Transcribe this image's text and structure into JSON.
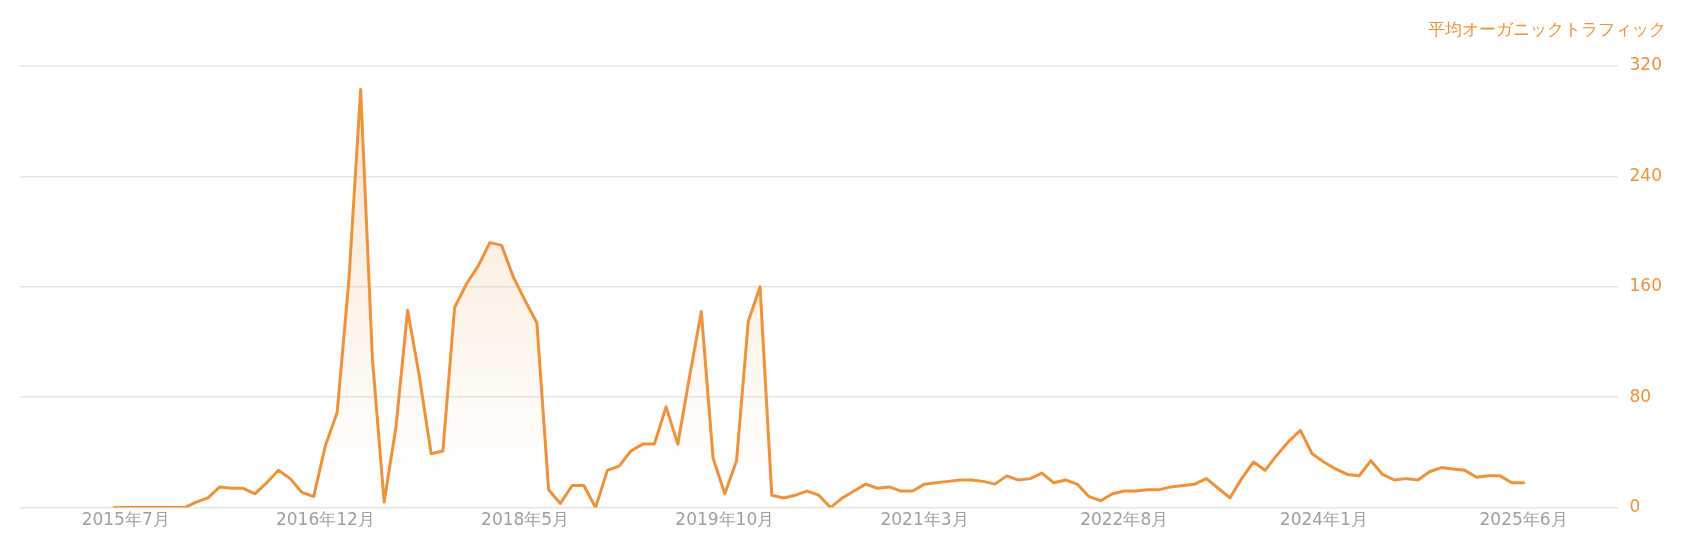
{
  "chart_data": {
    "type": "area",
    "ylabel": "平均オーガニックトラフィック",
    "x": [
      "2015-06",
      "2015-07",
      "2015-08",
      "2015-09",
      "2015-10",
      "2015-11",
      "2015-12",
      "2016-01",
      "2016-02",
      "2016-03",
      "2016-04",
      "2016-05",
      "2016-06",
      "2016-07",
      "2016-08",
      "2016-09",
      "2016-10",
      "2016-11",
      "2016-12",
      "2017-01",
      "2017-02",
      "2017-03",
      "2017-04",
      "2017-05",
      "2017-06",
      "2017-07",
      "2017-08",
      "2017-09",
      "2017-10",
      "2017-11",
      "2017-12",
      "2018-01",
      "2018-02",
      "2018-03",
      "2018-04",
      "2018-05",
      "2018-06",
      "2018-07",
      "2018-08",
      "2018-09",
      "2018-10",
      "2018-11",
      "2018-12",
      "2019-01",
      "2019-02",
      "2019-03",
      "2019-04",
      "2019-05",
      "2019-06",
      "2019-07",
      "2019-08",
      "2019-09",
      "2019-10",
      "2019-11",
      "2019-12",
      "2020-01",
      "2020-02",
      "2020-03",
      "2020-04",
      "2020-05",
      "2020-06",
      "2020-07",
      "2020-08",
      "2020-09",
      "2020-10",
      "2020-11",
      "2020-12",
      "2021-01",
      "2021-02",
      "2021-03",
      "2021-04",
      "2021-05",
      "2021-06",
      "2021-07",
      "2021-08",
      "2021-09",
      "2021-10",
      "2021-11",
      "2021-12",
      "2022-01",
      "2022-02",
      "2022-03",
      "2022-04",
      "2022-05",
      "2022-06",
      "2022-07",
      "2022-08",
      "2022-09",
      "2022-10",
      "2022-11",
      "2022-12",
      "2023-01",
      "2023-02",
      "2023-03",
      "2023-04",
      "2023-05",
      "2023-06",
      "2023-07",
      "2023-08",
      "2023-09",
      "2023-10",
      "2023-11",
      "2023-12",
      "2024-01",
      "2024-02",
      "2024-03",
      "2024-04",
      "2024-05",
      "2024-06",
      "2024-07",
      "2024-08",
      "2024-09",
      "2024-10",
      "2024-11",
      "2024-12",
      "2025-01",
      "2025-02",
      "2025-03",
      "2025-04",
      "2025-05",
      "2025-06"
    ],
    "series": [
      {
        "color": "#f0923a",
        "values": [
          0,
          0,
          0,
          0,
          0,
          0,
          0,
          4,
          7,
          15,
          14,
          14,
          10,
          18,
          27,
          21,
          11,
          8,
          45,
          69,
          165,
          303,
          108,
          4,
          58,
          143,
          95,
          39,
          41,
          145,
          162,
          175,
          192,
          190,
          167,
          150,
          134,
          13,
          3,
          16,
          16,
          0,
          27,
          30,
          41,
          46,
          46,
          73,
          46,
          95,
          142,
          36,
          10,
          34,
          135,
          160,
          9,
          7,
          9,
          12,
          9,
          0,
          7,
          12,
          17,
          14,
          15,
          12,
          12,
          17,
          18,
          19,
          20,
          20,
          19,
          17,
          23,
          20,
          21,
          25,
          18,
          20,
          17,
          8,
          5,
          10,
          12,
          12,
          13,
          13,
          15,
          16,
          17,
          21,
          14,
          7,
          21,
          33,
          27,
          38,
          48,
          56,
          39,
          33,
          28,
          24,
          23,
          34,
          24,
          20,
          21,
          20,
          26,
          29,
          28,
          27,
          22,
          23,
          23,
          18,
          18
        ]
      }
    ],
    "xlim": [
      "2014-10",
      "2026-02"
    ],
    "xticks": [
      {
        "value": "2015-07",
        "label": "2015年7月"
      },
      {
        "value": "2016-12",
        "label": "2016年12月"
      },
      {
        "value": "2018-05",
        "label": "2018年5月"
      },
      {
        "value": "2019-10",
        "label": "2019年10月"
      },
      {
        "value": "2021-03",
        "label": "2021年3月"
      },
      {
        "value": "2022-08",
        "label": "2022年8月"
      },
      {
        "value": "2024-01",
        "label": "2024年1月"
      },
      {
        "value": "2025-06",
        "label": "2025年6月"
      }
    ],
    "ylim": [
      0,
      320
    ],
    "yticks": [
      0,
      80,
      160,
      240,
      320
    ],
    "grid": "y",
    "legend": false,
    "marker": "none"
  }
}
